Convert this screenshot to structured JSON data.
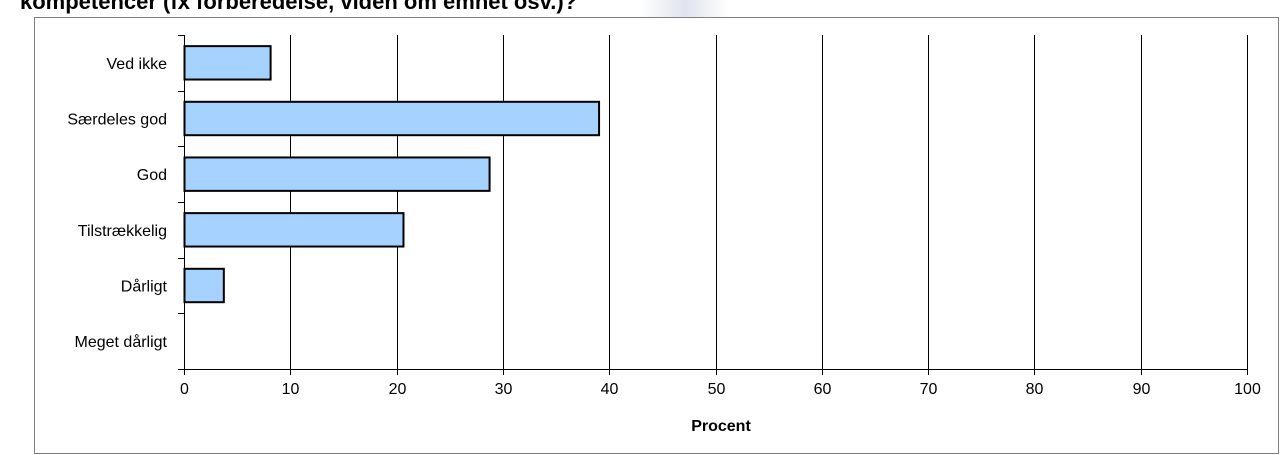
{
  "chart_data": {
    "type": "bar",
    "orientation": "horizontal",
    "title": "kompetencer (fx forberedelse, viden om emnet osv.)?",
    "xlabel": "Procent",
    "ylabel": "",
    "categories": [
      "Ved ikke",
      "Særdeles god",
      "God",
      "Tilstrækkelig",
      "Dårligt",
      "Meget dårligt"
    ],
    "values": [
      8.1,
      39.0,
      28.7,
      20.6,
      3.7,
      0
    ],
    "xlim": [
      0,
      100
    ],
    "xticks": [
      "0",
      "10",
      "20",
      "30",
      "40",
      "50",
      "60",
      "70",
      "80",
      "90",
      "100"
    ],
    "grid": "vertical",
    "legend": "none",
    "bar_color": "#a6d2ff",
    "bar_edge_color": "#000000"
  }
}
